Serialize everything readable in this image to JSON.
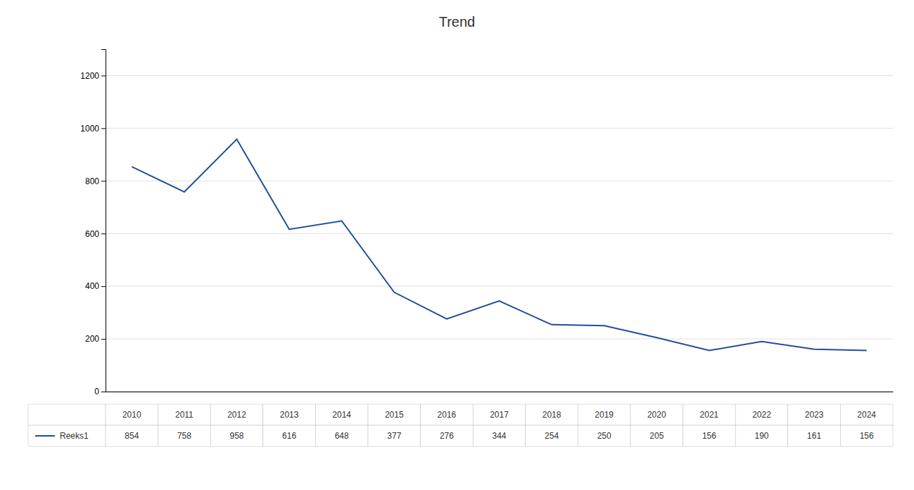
{
  "chart_data": {
    "type": "line",
    "title": "Trend",
    "categories": [
      "2010",
      "2011",
      "2012",
      "2013",
      "2014",
      "2015",
      "2016",
      "2017",
      "2018",
      "2019",
      "2020",
      "2021",
      "2022",
      "2023",
      "2024"
    ],
    "series": [
      {
        "name": "Reeks1",
        "color": "#1F4E99",
        "values": [
          854,
          758,
          958,
          616,
          648,
          377,
          276,
          344,
          254,
          250,
          205,
          156,
          190,
          161,
          156
        ]
      }
    ],
    "ylim": [
      0,
      1300
    ],
    "yticks": [
      0,
      200,
      400,
      600,
      800,
      1000,
      1200
    ],
    "grid": true,
    "legend": "bottom",
    "data_labels": true
  }
}
